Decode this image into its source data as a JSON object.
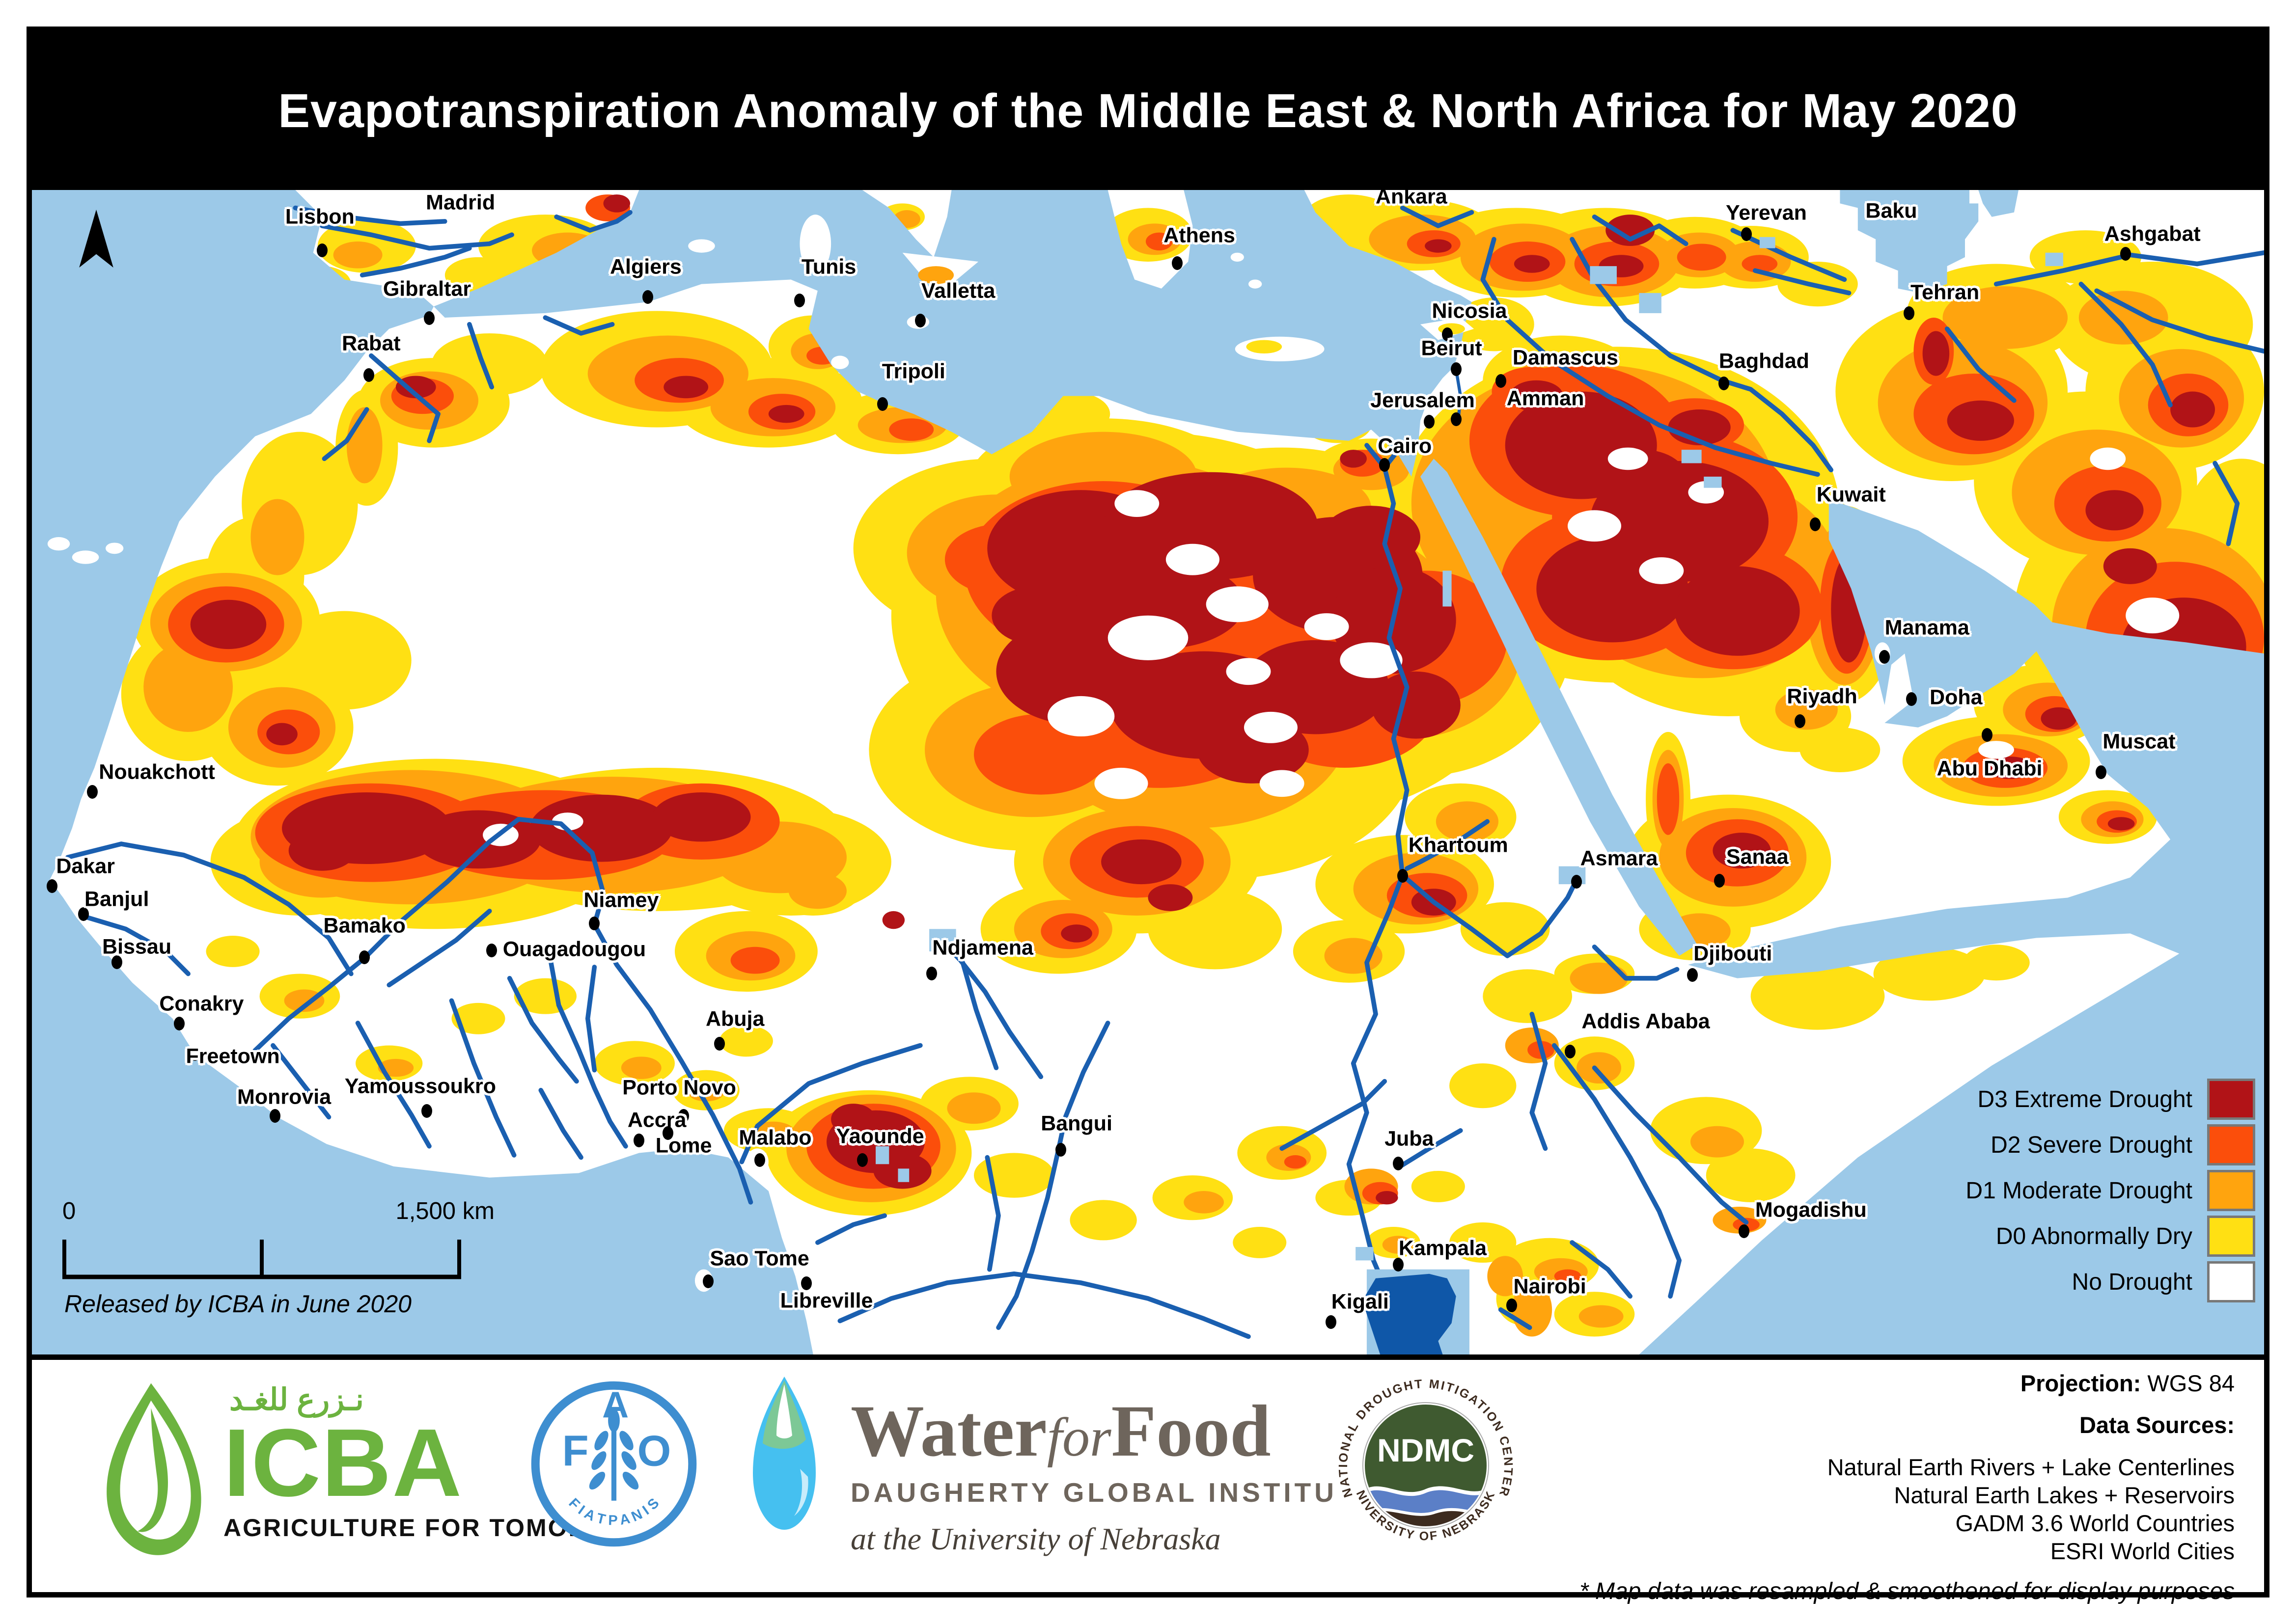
{
  "poster": {
    "title": "Evapotranspiration Anomaly of the Middle East & North Africa for May 2020"
  },
  "map": {
    "colors": {
      "ocean": "#9CC9E8",
      "river": "#1A5FB0",
      "lake_dark": "#0F57A8",
      "d0": "#FFE013",
      "d1": "#FFA40E",
      "d2": "#FB4E0B",
      "d3": "#B11317"
    },
    "legend": {
      "items": [
        {
          "label": "D3 Extreme Drought",
          "color": "#B11317"
        },
        {
          "label": "D2 Severe Drought",
          "color": "#FB4E0B"
        },
        {
          "label": "D1 Moderate Drought",
          "color": "#FFA40E"
        },
        {
          "label": "D0 Abnormally Dry",
          "color": "#FFE013"
        },
        {
          "label": "No Drought",
          "color": "#FFFFFF"
        }
      ]
    },
    "scale": {
      "start": "0",
      "end": "1,500 km"
    },
    "released": "Released by ICBA in June 2020",
    "cities": [
      {
        "name": "Lisbon",
        "lx": 12.9,
        "ly": 2.3,
        "dx": 13.0,
        "dy": 5.2
      },
      {
        "name": "Madrid",
        "lx": 19.2,
        "ly": 1.1
      },
      {
        "name": "Gibraltar",
        "lx": 17.7,
        "ly": 8.5,
        "dx": 17.8,
        "dy": 11.0
      },
      {
        "name": "Rabat",
        "lx": 15.2,
        "ly": 13.2,
        "dx": 15.1,
        "dy": 15.9
      },
      {
        "name": "Algiers",
        "lx": 27.5,
        "ly": 6.6,
        "dx": 27.6,
        "dy": 9.2
      },
      {
        "name": "Tunis",
        "lx": 35.7,
        "ly": 6.6,
        "dx": 34.4,
        "dy": 9.5
      },
      {
        "name": "Valletta",
        "lx": 41.5,
        "ly": 8.7,
        "dx": 39.8,
        "dy": 11.2
      },
      {
        "name": "Tripoli",
        "lx": 39.5,
        "ly": 15.6,
        "dx": 38.1,
        "dy": 18.4
      },
      {
        "name": "Athens",
        "lx": 52.3,
        "ly": 3.9,
        "dx": 51.3,
        "dy": 6.3
      },
      {
        "name": "Ankara",
        "lx": 61.8,
        "ly": 0.6
      },
      {
        "name": "Yerevan",
        "lx": 77.7,
        "ly": 2.0,
        "dx": 76.8,
        "dy": 3.8
      },
      {
        "name": "Baku",
        "lx": 83.3,
        "ly": 1.8
      },
      {
        "name": "Ashgabat",
        "lx": 95.0,
        "ly": 3.8,
        "dx": 93.8,
        "dy": 5.5
      },
      {
        "name": "Tehran",
        "lx": 85.7,
        "ly": 8.8,
        "dx": 84.1,
        "dy": 10.6
      },
      {
        "name": "Nicosia",
        "lx": 64.4,
        "ly": 10.4,
        "dx": 63.4,
        "dy": 12.4
      },
      {
        "name": "Beirut",
        "lx": 63.6,
        "ly": 13.6,
        "dx": 63.8,
        "dy": 15.4
      },
      {
        "name": "Damascus",
        "lx": 68.7,
        "ly": 14.4,
        "dx": 65.8,
        "dy": 16.4
      },
      {
        "name": "Jerusalem",
        "lx": 62.3,
        "ly": 18.1,
        "dx": 62.6,
        "dy": 19.9
      },
      {
        "name": "Amman",
        "lx": 67.8,
        "ly": 17.9,
        "dx": 63.8,
        "dy": 19.7
      },
      {
        "name": "Cairo",
        "lx": 61.5,
        "ly": 22.0,
        "dx": 60.6,
        "dy": 23.6
      },
      {
        "name": "Baghdad",
        "lx": 77.6,
        "ly": 14.7,
        "dx": 75.8,
        "dy": 16.6
      },
      {
        "name": "Kuwait",
        "lx": 81.5,
        "ly": 26.2,
        "dx": 79.9,
        "dy": 28.7
      },
      {
        "name": "Manama",
        "lx": 84.9,
        "ly": 37.6,
        "dx": 83.0,
        "dy": 40.1
      },
      {
        "name": "Riyadh",
        "lx": 80.2,
        "ly": 43.5,
        "dx": 79.2,
        "dy": 45.6
      },
      {
        "name": "Doha",
        "lx": 86.2,
        "ly": 43.6,
        "dx": 84.2,
        "dy": 43.7
      },
      {
        "name": "Abu Dhabi",
        "lx": 87.7,
        "ly": 49.7,
        "dx": 87.6,
        "dy": 46.8
      },
      {
        "name": "Muscat",
        "lx": 94.4,
        "ly": 47.4,
        "dx": 92.7,
        "dy": 50.0
      },
      {
        "name": "Nouakchott",
        "lx": 5.6,
        "ly": 50.0,
        "dx": 2.7,
        "dy": 51.7
      },
      {
        "name": "Dakar",
        "lx": 2.4,
        "ly": 58.1,
        "dx": 0.9,
        "dy": 59.8
      },
      {
        "name": "Banjul",
        "lx": 3.8,
        "ly": 60.9,
        "dx": 2.3,
        "dy": 62.2
      },
      {
        "name": "Bissau",
        "lx": 4.7,
        "ly": 65.0,
        "dx": 3.8,
        "dy": 66.3
      },
      {
        "name": "Conakry",
        "lx": 7.6,
        "ly": 69.9,
        "dx": 6.6,
        "dy": 71.6
      },
      {
        "name": "Freetown",
        "lx": 9.0,
        "ly": 74.4,
        "dx": 7.3,
        "dy": 74.2
      },
      {
        "name": "Monrovia",
        "lx": 11.3,
        "ly": 77.9,
        "dx": 10.9,
        "dy": 79.5
      },
      {
        "name": "Bamako",
        "lx": 14.9,
        "ly": 63.2,
        "dx": 14.9,
        "dy": 65.9
      },
      {
        "name": "Ouagadougou",
        "lx": 24.3,
        "ly": 65.2,
        "dx": 20.6,
        "dy": 65.3
      },
      {
        "name": "Niamey",
        "lx": 26.4,
        "ly": 61.0,
        "dx": 25.2,
        "dy": 63.0
      },
      {
        "name": "Abuja",
        "lx": 31.5,
        "ly": 71.2,
        "dx": 30.8,
        "dy": 73.3
      },
      {
        "name": "Porto Novo",
        "lx": 29.0,
        "ly": 77.1,
        "dx": 29.2,
        "dy": 79.5
      },
      {
        "name": "Accra",
        "lx": 28.0,
        "ly": 79.9,
        "dx": 27.2,
        "dy": 81.6
      },
      {
        "name": "Lome",
        "lx": 29.2,
        "ly": 82.1,
        "dx": 28.5,
        "dy": 81.0
      },
      {
        "name": "Yamoussoukro",
        "lx": 17.4,
        "ly": 77.0,
        "dx": 17.7,
        "dy": 79.1
      },
      {
        "name": "Malabo",
        "lx": 33.3,
        "ly": 81.4,
        "dx": 32.6,
        "dy": 83.3
      },
      {
        "name": "Yaounde",
        "lx": 38.0,
        "ly": 81.3,
        "dx": 37.2,
        "dy": 83.3
      },
      {
        "name": "Sao Tome",
        "lx": 32.6,
        "ly": 91.8,
        "dx": 30.3,
        "dy": 93.7
      },
      {
        "name": "Libreville",
        "lx": 35.6,
        "ly": 95.4,
        "dx": 34.7,
        "dy": 93.9
      },
      {
        "name": "Bangui",
        "lx": 46.8,
        "ly": 80.2,
        "dx": 46.1,
        "dy": 82.4
      },
      {
        "name": "Ndjamena",
        "lx": 42.6,
        "ly": 65.1,
        "dx": 40.3,
        "dy": 67.3
      },
      {
        "name": "Juba",
        "lx": 61.7,
        "ly": 81.5,
        "dx": 61.2,
        "dy": 83.6
      },
      {
        "name": "Kampala",
        "lx": 63.2,
        "ly": 90.9,
        "dx": 61.2,
        "dy": 92.3
      },
      {
        "name": "Kigali",
        "lx": 59.5,
        "ly": 95.5,
        "dx": 58.2,
        "dy": 97.2
      },
      {
        "name": "Nairobi",
        "lx": 68.0,
        "ly": 94.2,
        "dx": 66.3,
        "dy": 95.8
      },
      {
        "name": "Khartoum",
        "lx": 63.9,
        "ly": 56.3,
        "dx": 61.4,
        "dy": 58.9
      },
      {
        "name": "Asmara",
        "lx": 71.1,
        "ly": 57.4,
        "dx": 69.2,
        "dy": 59.4
      },
      {
        "name": "Sanaa",
        "lx": 77.3,
        "ly": 57.3,
        "dx": 75.6,
        "dy": 59.3
      },
      {
        "name": "Djibouti",
        "lx": 76.2,
        "ly": 65.6,
        "dx": 74.4,
        "dy": 67.4
      },
      {
        "name": "Addis Ababa",
        "lx": 72.3,
        "ly": 71.4,
        "dx": 68.9,
        "dy": 74.0
      },
      {
        "name": "Mogadishu",
        "lx": 79.7,
        "ly": 87.6,
        "dx": 76.7,
        "dy": 89.4
      }
    ]
  },
  "footer": {
    "icba": {
      "arabic": "نـزرع للغـد",
      "name": "ICBA",
      "tagline": "AGRICULTURE FOR TOMORROW",
      "green": "#6CB33F"
    },
    "fao": {
      "f": "F",
      "a": "A",
      "o": "O",
      "motto": "F I A T   P A N I S",
      "blue": "#3E8ED0"
    },
    "wff": {
      "word1": "Water",
      "word2": "for",
      "word3": "Food",
      "line2": "DAUGHERTY GLOBAL INSTITUTE",
      "line3": "at the University of Nebraska",
      "brown": "#6E655C"
    },
    "ndmc": {
      "abbr": "NDMC",
      "ring_top": "NATIONAL DROUGHT MITIGATION CENTER",
      "ring_bottom": "UNIVERSITY OF NEBRASKA"
    },
    "credits": {
      "projection_label": "Projection:",
      "projection_value": " WGS 84",
      "sources_label": "Data Sources:",
      "sources": [
        "Natural Earth Rivers + Lake Centerlines",
        "Natural Earth Lakes + Reservoirs",
        "GADM 3.6 World Countries",
        "ESRI World Cities"
      ],
      "note": "* Map data was resampled & smoothened for display purposes"
    }
  }
}
